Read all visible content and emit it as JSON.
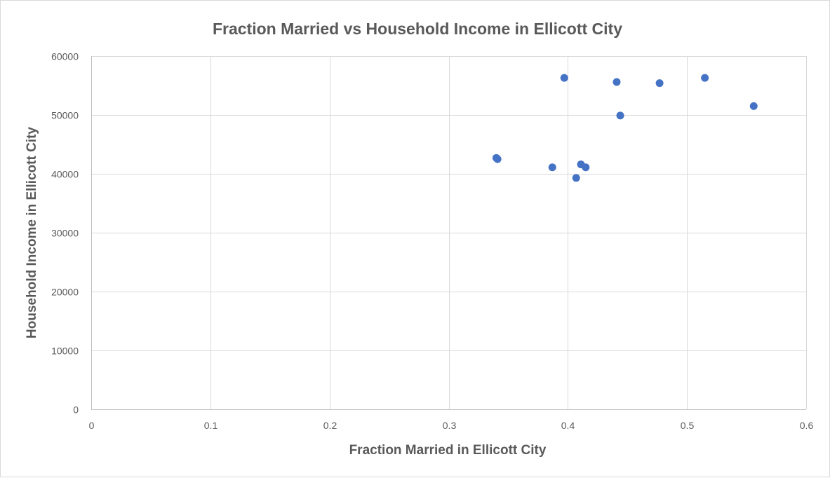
{
  "chart_data": {
    "type": "scatter",
    "title": "Fraction Married vs Household Income in Ellicott City",
    "xlabel": "Fraction Married in Ellicott City",
    "ylabel": "Household Income in Ellicott City",
    "xlim": [
      0,
      0.6
    ],
    "ylim": [
      0,
      60000
    ],
    "xticks": [
      0,
      0.1,
      0.2,
      0.3,
      0.4,
      0.5,
      0.6
    ],
    "xtick_labels": [
      "0",
      "0.1",
      "0.2",
      "0.3",
      "0.4",
      "0.5",
      "0.6"
    ],
    "yticks": [
      0,
      10000,
      20000,
      30000,
      40000,
      50000,
      60000
    ],
    "ytick_labels": [
      "0",
      "10000",
      "20000",
      "30000",
      "40000",
      "50000",
      "60000"
    ],
    "grid": true,
    "legend": "none",
    "marker_color": "#4472c4",
    "series": [
      {
        "points": [
          {
            "x": 0.34,
            "y": 42700
          },
          {
            "x": 0.341,
            "y": 42500
          },
          {
            "x": 0.387,
            "y": 41100
          },
          {
            "x": 0.397,
            "y": 56300
          },
          {
            "x": 0.407,
            "y": 39300
          },
          {
            "x": 0.411,
            "y": 41600
          },
          {
            "x": 0.415,
            "y": 41100
          },
          {
            "x": 0.441,
            "y": 55600
          },
          {
            "x": 0.444,
            "y": 49900
          },
          {
            "x": 0.477,
            "y": 55400
          },
          {
            "x": 0.515,
            "y": 56300
          },
          {
            "x": 0.556,
            "y": 51500
          }
        ]
      }
    ]
  }
}
